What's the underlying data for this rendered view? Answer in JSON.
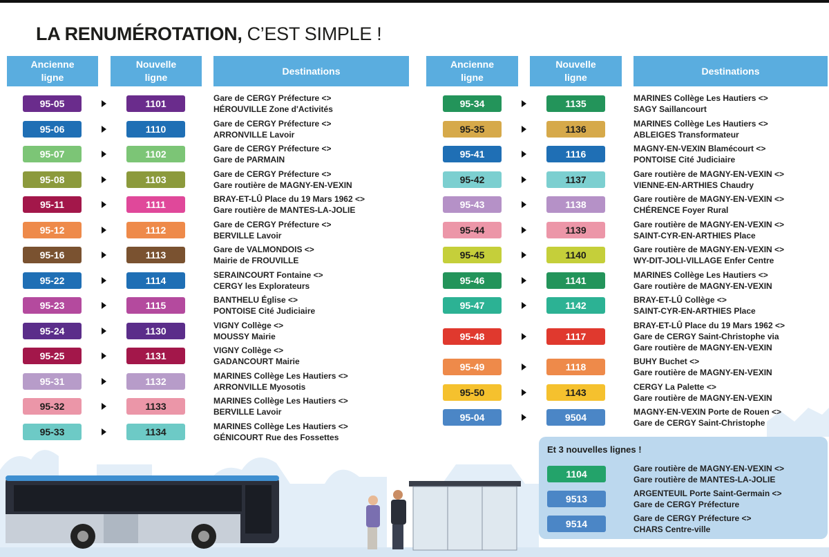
{
  "title": {
    "bold": "LA RENUMÉROTATION,",
    "rest": "C’EST SIMPLE !"
  },
  "headers": [
    "Ancienne ligne",
    "Nouvelle ligne",
    "Destinations"
  ],
  "left_rows": [
    {
      "old": "95-05",
      "new": "1101",
      "color": "#6a2c8c",
      "destinations": [
        "Gare de CERGY Préfecture <>",
        "HÉROUVILLE Zone d'Activités"
      ]
    },
    {
      "old": "95-06",
      "new": "1110",
      "color": "#1f6fb5",
      "destinations": [
        "Gare de CERGY Préfecture <>",
        "ARRONVILLE Lavoir"
      ]
    },
    {
      "old": "95-07",
      "new": "1102",
      "color": "#7cc576",
      "destinations": [
        "Gare de CERGY Préfecture <>",
        "Gare de PARMAIN"
      ]
    },
    {
      "old": "95-08",
      "new": "1103",
      "color": "#8c9a3c",
      "destinations": [
        "Gare de CERGY Préfecture <>",
        "Gare routière de MAGNY-EN-VEXIN"
      ]
    },
    {
      "old": "95-11",
      "new": "1111",
      "color": "#a3174a",
      "new_color": "#e0489a",
      "destinations": [
        "BRAY-ET-LÛ Place du 19 Mars 1962 <>",
        "Gare routière de MANTES-LA-JOLIE"
      ]
    },
    {
      "old": "95-12",
      "new": "1112",
      "color": "#ee8a4a",
      "destinations": [
        "Gare de CERGY Préfecture <>",
        "BERVILLE Lavoir"
      ]
    },
    {
      "old": "95-16",
      "new": "1113",
      "color": "#7a5230",
      "destinations": [
        "Gare de VALMONDOIS <>",
        "Mairie de FROUVILLE"
      ]
    },
    {
      "old": "95-22",
      "new": "1114",
      "color": "#1f6fb5",
      "destinations": [
        "SERAINCOURT Fontaine <>",
        "CERGY les Explorateurs"
      ]
    },
    {
      "old": "95-23",
      "new": "1115",
      "color": "#b44a9e",
      "destinations": [
        "BANTHELU Église <>",
        "PONTOISE Cité Judiciaire"
      ]
    },
    {
      "old": "95-24",
      "new": "1130",
      "color": "#5b2d8a",
      "destinations": [
        "VIGNY Collège <>",
        "MOUSSY Mairie"
      ]
    },
    {
      "old": "95-25",
      "new": "1131",
      "color": "#a3174a",
      "destinations": [
        "VIGNY Collège <>",
        "GADANCOURT Mairie"
      ]
    },
    {
      "old": "95-31",
      "new": "1132",
      "color": "#b79cc9",
      "destinations": [
        "MARINES Collège Les Hautiers <>",
        "ARRONVILLE Myosotis"
      ]
    },
    {
      "old": "95-32",
      "new": "1133",
      "color": "#eb96a8",
      "destinations": [
        "MARINES Collège Les Hautiers <>",
        "BERVILLE Lavoir"
      ]
    },
    {
      "old": "95-33",
      "new": "1134",
      "color": "#6dcac6",
      "destinations": [
        "MARINES Collège Les Hautiers <>",
        "GÉNICOURT Rue des Fossettes"
      ]
    }
  ],
  "right_rows": [
    {
      "old": "95-34",
      "new": "1135",
      "color": "#23945a",
      "destinations": [
        "MARINES Collège Les Hautiers <>",
        "SAGY Saillancourt"
      ]
    },
    {
      "old": "95-35",
      "new": "1136",
      "color": "#d6a94a",
      "destinations": [
        "MARINES Collège Les Hautiers <>",
        "ABLEIGES Transformateur"
      ]
    },
    {
      "old": "95-41",
      "new": "1116",
      "color": "#1f6fb5",
      "destinations": [
        "MAGNY-EN-VEXIN Blamécourt <>",
        "PONTOISE Cité Judiciaire"
      ]
    },
    {
      "old": "95-42",
      "new": "1137",
      "color": "#7ccfd0",
      "destinations": [
        "Gare routière de MAGNY-EN-VEXIN <>",
        "VIENNE-EN-ARTHIES Chaudry"
      ]
    },
    {
      "old": "95-43",
      "new": "1138",
      "color": "#b591c7",
      "destinations": [
        "Gare routière de MAGNY-EN-VEXIN <>",
        "CHÉRENCE Foyer Rural"
      ]
    },
    {
      "old": "95-44",
      "new": "1139",
      "color": "#ec96a8",
      "destinations": [
        "Gare routière de MAGNY-EN-VEXIN <>",
        "SAINT-CYR-EN-ARTHIES Place"
      ]
    },
    {
      "old": "95-45",
      "new": "1140",
      "color": "#c5cf3a",
      "destinations": [
        "Gare routière de MAGNY-EN-VEXIN <>",
        "WY-DIT-JOLI-VILLAGE Enfer Centre"
      ]
    },
    {
      "old": "95-46",
      "new": "1141",
      "color": "#23945a",
      "destinations": [
        "MARINES Collège Les Hautiers <>",
        "Gare routière de MAGNY-EN-VEXIN"
      ]
    },
    {
      "old": "95-47",
      "new": "1142",
      "color": "#2cb294",
      "destinations": [
        "BRAY-ET-LÛ Collège <>",
        "SAINT-CYR-EN-ARTHIES Place"
      ]
    },
    {
      "old": "95-48",
      "new": "1117",
      "color": "#e0392e",
      "destinations": [
        "BRAY-ET-LÛ Place du 19 Mars 1962 <>",
        "Gare de CERGY Saint-Christophe via",
        "Gare routière de MAGNY-EN-VEXIN"
      ]
    },
    {
      "old": "95-49",
      "new": "1118",
      "color": "#ee8a4a",
      "destinations": [
        "BUHY Buchet <>",
        "Gare routière de MAGNY-EN-VEXIN"
      ]
    },
    {
      "old": "95-50",
      "new": "1143",
      "color": "#f5c12e",
      "destinations": [
        "CERGY La Palette <>",
        "Gare routière de MAGNY-EN-VEXIN"
      ]
    },
    {
      "old": "95-04",
      "new": "9504",
      "color": "#4b86c6",
      "destinations": [
        "MAGNY-EN-VEXIN Porte de Rouen <>",
        "Gare de CERGY Saint-Christophe"
      ]
    }
  ],
  "new_lines": {
    "title": "Et 3 nouvelles lignes !",
    "rows": [
      {
        "line": "1104",
        "color": "#23a36a",
        "destinations": [
          "Gare routière de MAGNY-EN-VEXIN <>",
          "Gare routière de MANTES-LA-JOLIE"
        ]
      },
      {
        "line": "9513",
        "color": "#4b86c6",
        "destinations": [
          "ARGENTEUIL Porte Saint-Germain <>",
          "Gare de CERGY Préfecture"
        ]
      },
      {
        "line": "9514",
        "color": "#4b86c6",
        "destinations": [
          "Gare de CERGY Préfecture <>",
          "CHARS Centre-ville"
        ]
      }
    ]
  }
}
